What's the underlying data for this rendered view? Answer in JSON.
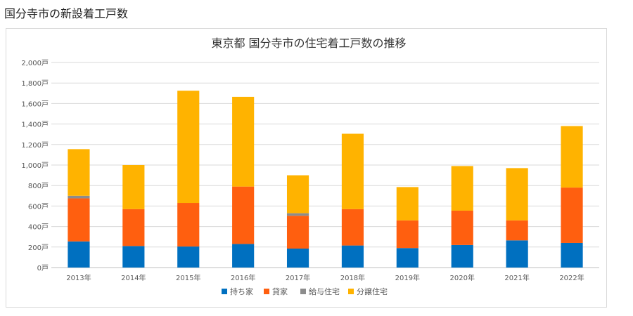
{
  "page_heading": "国分寺市の新設着工戸数",
  "chart_data": {
    "type": "bar",
    "stacked": true,
    "title": "東京都 国分寺市の住宅着工戸数の推移",
    "xlabel": "",
    "ylabel": "",
    "ylim": [
      0,
      2000
    ],
    "y_ticks": [
      0,
      200,
      400,
      600,
      800,
      1000,
      1200,
      1400,
      1600,
      1800,
      2000
    ],
    "y_tick_labels": [
      "0戸",
      "200戸",
      "400戸",
      "600戸",
      "800戸",
      "1,000戸",
      "1,200戸",
      "1,400戸",
      "1,600戸",
      "1,800戸",
      "2,000戸"
    ],
    "grid": true,
    "legend_position": "bottom",
    "categories": [
      "2013年",
      "2014年",
      "2015年",
      "2016年",
      "2017年",
      "2018年",
      "2019年",
      "2020年",
      "2021年",
      "2022年"
    ],
    "series": [
      {
        "name": "持ち家",
        "color": "#0070c0",
        "values": [
          255,
          210,
          205,
          230,
          185,
          215,
          190,
          220,
          265,
          240
        ]
      },
      {
        "name": "貸家",
        "color": "#ff5f0f",
        "values": [
          420,
          360,
          425,
          560,
          320,
          355,
          270,
          335,
          195,
          540
        ]
      },
      {
        "name": "給与住宅",
        "color": "#8c8c8c",
        "values": [
          25,
          0,
          0,
          0,
          25,
          0,
          0,
          0,
          0,
          0
        ]
      },
      {
        "name": "分譲住宅",
        "color": "#ffb300",
        "values": [
          455,
          430,
          1095,
          875,
          370,
          735,
          325,
          435,
          510,
          600
        ]
      }
    ]
  }
}
